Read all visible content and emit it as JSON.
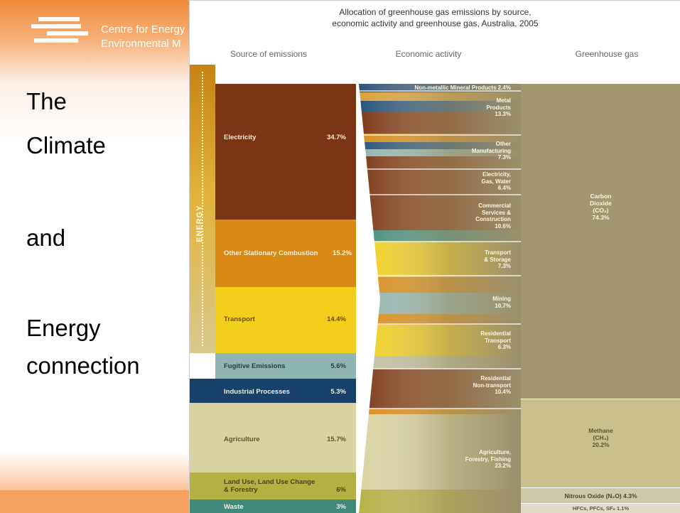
{
  "logo": {
    "line_1": "Centre for Energy",
    "line_2": "Environmental M"
  },
  "slide_words": [
    "The",
    "Climate",
    "and",
    "Energy",
    "connection"
  ],
  "colors": {
    "electricity": "#7a3512",
    "other_stationary": "#d98a14",
    "transport": "#f2cf1c",
    "fugitive": "#8fb5b0",
    "industrial": "#17406a",
    "agriculture": "#d9d3a0",
    "land_use": "#b5b042",
    "waste": "#3f8a7a",
    "co2": "#a39770",
    "methane": "#c9c08a",
    "n2o": "#cfc8a8",
    "hfc": "#e0dbc6"
  },
  "chart_data": {
    "type": "sankey",
    "title": "Allocation of greenhouse gas emissions by source, economic activity and greenhouse gas, Australia, 2005",
    "title_line_1": "Allocation of greenhouse gas emissions by source,",
    "title_line_2": "economic activity and greenhouse gas, Australia, 2005",
    "columns": [
      "Source of emissions",
      "Economic activity",
      "Greenhouse gas"
    ],
    "energy_group_label": "ENERGY",
    "sources": [
      {
        "name": "Electricity",
        "value": "34.7%"
      },
      {
        "name": "Other Stationary Combustion",
        "value": "15.2%"
      },
      {
        "name": "Transport",
        "value": "14.4%"
      },
      {
        "name": "Fugitive Emissions",
        "value": "5.6%"
      },
      {
        "name": "Industrial Processes",
        "value": "5.3%"
      },
      {
        "name": "Agriculture",
        "value": "15.7%"
      },
      {
        "name": "Land Use, Land Use Change & Forestry",
        "name_line_1": "Land Use, Land Use Change",
        "name_line_2": "& Forestry",
        "value": "6%"
      },
      {
        "name": "Waste",
        "value": "3%"
      }
    ],
    "activities": [
      {
        "lines": [
          "Non-metallic Mineral Products 2.4%"
        ]
      },
      {
        "lines": [
          "Metal",
          "Products",
          "13.3%"
        ]
      },
      {
        "lines": [
          "Other",
          "Manufacturing",
          "7.3%"
        ]
      },
      {
        "lines": [
          "Electricity,",
          "Gas, Water",
          "6.4%"
        ]
      },
      {
        "lines": [
          "Commercial",
          "Services &",
          "Construction",
          "10.6%"
        ]
      },
      {
        "lines": [
          "Transport",
          "& Storage",
          "7.3%"
        ]
      },
      {
        "lines": [
          "Mining",
          "10.7%"
        ]
      },
      {
        "lines": [
          "Residential",
          "Transport",
          "6.3%"
        ]
      },
      {
        "lines": [
          "Residential",
          "Non-transport",
          "10.4%"
        ]
      },
      {
        "lines": [
          "Agriculture,",
          "Forestry, Fishing",
          "23.2%"
        ]
      }
    ],
    "gases": [
      {
        "lines": [
          "Carbon",
          "Dioxide",
          "(CO₂)",
          "74.3%"
        ]
      },
      {
        "lines": [
          "Methane",
          "(CH₄)",
          "20.2%"
        ]
      },
      {
        "lines": [
          "Nitrous Oxide (N₂O) 4.3%"
        ]
      },
      {
        "lines": [
          "HFCs, PFCs, SF₆ 1.1%"
        ]
      }
    ]
  }
}
